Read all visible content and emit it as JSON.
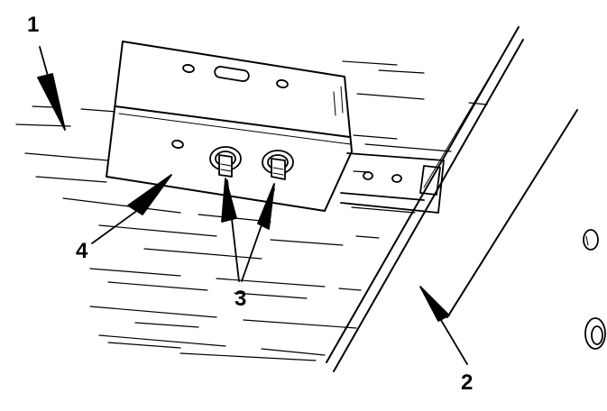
{
  "callouts": {
    "one": "1",
    "two": "2",
    "three": "3",
    "four": "4"
  },
  "colors": {
    "ink": "#000000",
    "paper": "#ffffff"
  }
}
